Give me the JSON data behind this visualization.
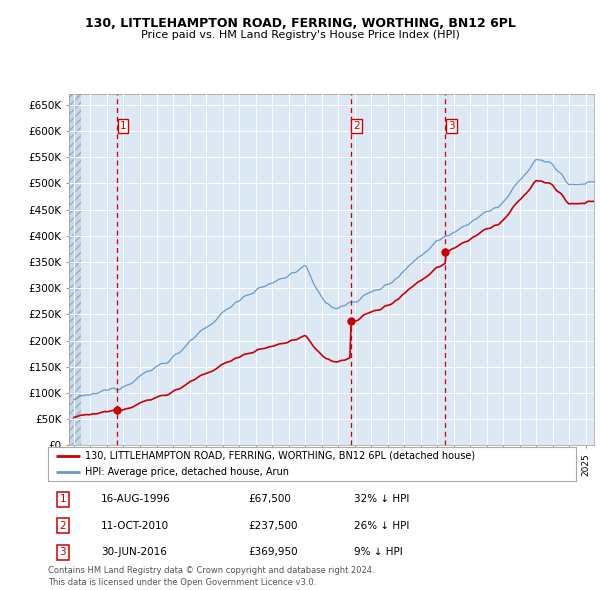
{
  "title": "130, LITTLEHAMPTON ROAD, FERRING, WORTHING, BN12 6PL",
  "subtitle": "Price paid vs. HM Land Registry's House Price Index (HPI)",
  "plot_bg_color": "#dce9f5",
  "ylim": [
    0,
    670000
  ],
  "yticks": [
    0,
    50000,
    100000,
    150000,
    200000,
    250000,
    300000,
    350000,
    400000,
    450000,
    500000,
    550000,
    600000,
    650000
  ],
  "ytick_labels": [
    "£0",
    "£50K",
    "£100K",
    "£150K",
    "£200K",
    "£250K",
    "£300K",
    "£350K",
    "£400K",
    "£450K",
    "£500K",
    "£550K",
    "£600K",
    "£650K"
  ],
  "xlim_start": 1993.7,
  "xlim_end": 2025.5,
  "sales": [
    {
      "year": 1996.622,
      "price": 67500,
      "label": "1"
    },
    {
      "year": 2010.775,
      "price": 237500,
      "label": "2"
    },
    {
      "year": 2016.497,
      "price": 369950,
      "label": "3"
    }
  ],
  "sale_color": "#cc0000",
  "vline_color": "#cc0000",
  "hpi_line_color": "#6699cc",
  "price_line_color": "#cc0000",
  "legend_items": [
    "130, LITTLEHAMPTON ROAD, FERRING, WORTHING, BN12 6PL (detached house)",
    "HPI: Average price, detached house, Arun"
  ],
  "table_rows": [
    {
      "num": "1",
      "date": "16-AUG-1996",
      "price": "£67,500",
      "pct": "32% ↓ HPI"
    },
    {
      "num": "2",
      "date": "11-OCT-2010",
      "price": "£237,500",
      "pct": "26% ↓ HPI"
    },
    {
      "num": "3",
      "date": "30-JUN-2016",
      "price": "£369,950",
      "pct": "9% ↓ HPI"
    }
  ],
  "footnote": "Contains HM Land Registry data © Crown copyright and database right 2024.\nThis data is licensed under the Open Government Licence v3.0."
}
